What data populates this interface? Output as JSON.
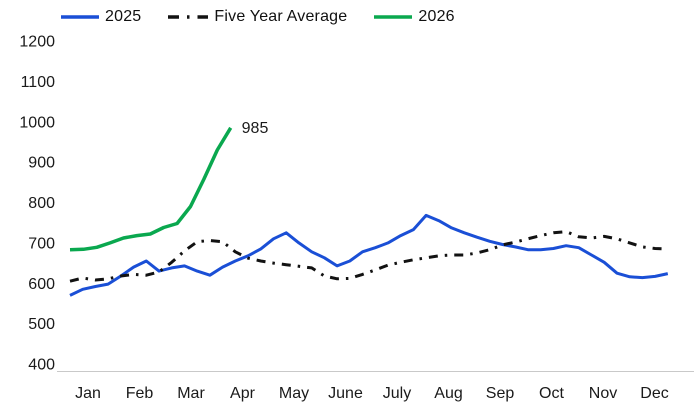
{
  "chart_data": {
    "type": "line",
    "title": "",
    "legend_position": "top",
    "grid": false,
    "background": "#ffffff",
    "axis_line_color": "#c9c9c9",
    "text_color": "#1a1a1a",
    "x_axis": {
      "labels": [
        "Jan",
        "Feb",
        "Mar",
        "Apr",
        "May",
        "June",
        "July",
        "Aug",
        "Sep",
        "Oct",
        "Nov",
        "Dec"
      ]
    },
    "y_axis": {
      "min": 400,
      "max": 1200,
      "tick_step": 100,
      "ticks": [
        1200,
        1100,
        1000,
        900,
        800,
        700,
        600,
        500,
        400
      ]
    },
    "series": [
      {
        "name": "2025",
        "color": "#1a4fd6",
        "style": "solid",
        "width": 3,
        "x_start": -0.35,
        "x_step": 0.247,
        "values": [
          570,
          585,
          592,
          598,
          618,
          640,
          655,
          630,
          638,
          643,
          630,
          620,
          640,
          655,
          668,
          685,
          710,
          725,
          700,
          678,
          663,
          643,
          655,
          678,
          688,
          700,
          718,
          733,
          768,
          755,
          737,
          725,
          714,
          704,
          696,
          690,
          683,
          683,
          686,
          693,
          688,
          670,
          652,
          625,
          616,
          614,
          617,
          624
        ]
      },
      {
        "name": "Five Year Average",
        "color": "#121212",
        "style": "dash-dot",
        "width": 3,
        "x_start": -0.35,
        "x_step": 0.247,
        "values": [
          605,
          613,
          608,
          611,
          618,
          622,
          620,
          628,
          652,
          680,
          703,
          706,
          703,
          678,
          662,
          655,
          650,
          646,
          642,
          638,
          618,
          611,
          612,
          622,
          633,
          645,
          652,
          658,
          663,
          668,
          670,
          670,
          675,
          683,
          695,
          702,
          710,
          718,
          725,
          728,
          715,
          712,
          716,
          710,
          700,
          690,
          686,
          685
        ]
      },
      {
        "name": "2026",
        "color": "#0aa84f",
        "style": "solid",
        "width": 3.5,
        "x_start": -0.35,
        "x_step": 0.26,
        "values": [
          683,
          684,
          689,
          700,
          712,
          718,
          722,
          738,
          748,
          790,
          858,
          930,
          985
        ],
        "end_label": "985"
      }
    ]
  }
}
